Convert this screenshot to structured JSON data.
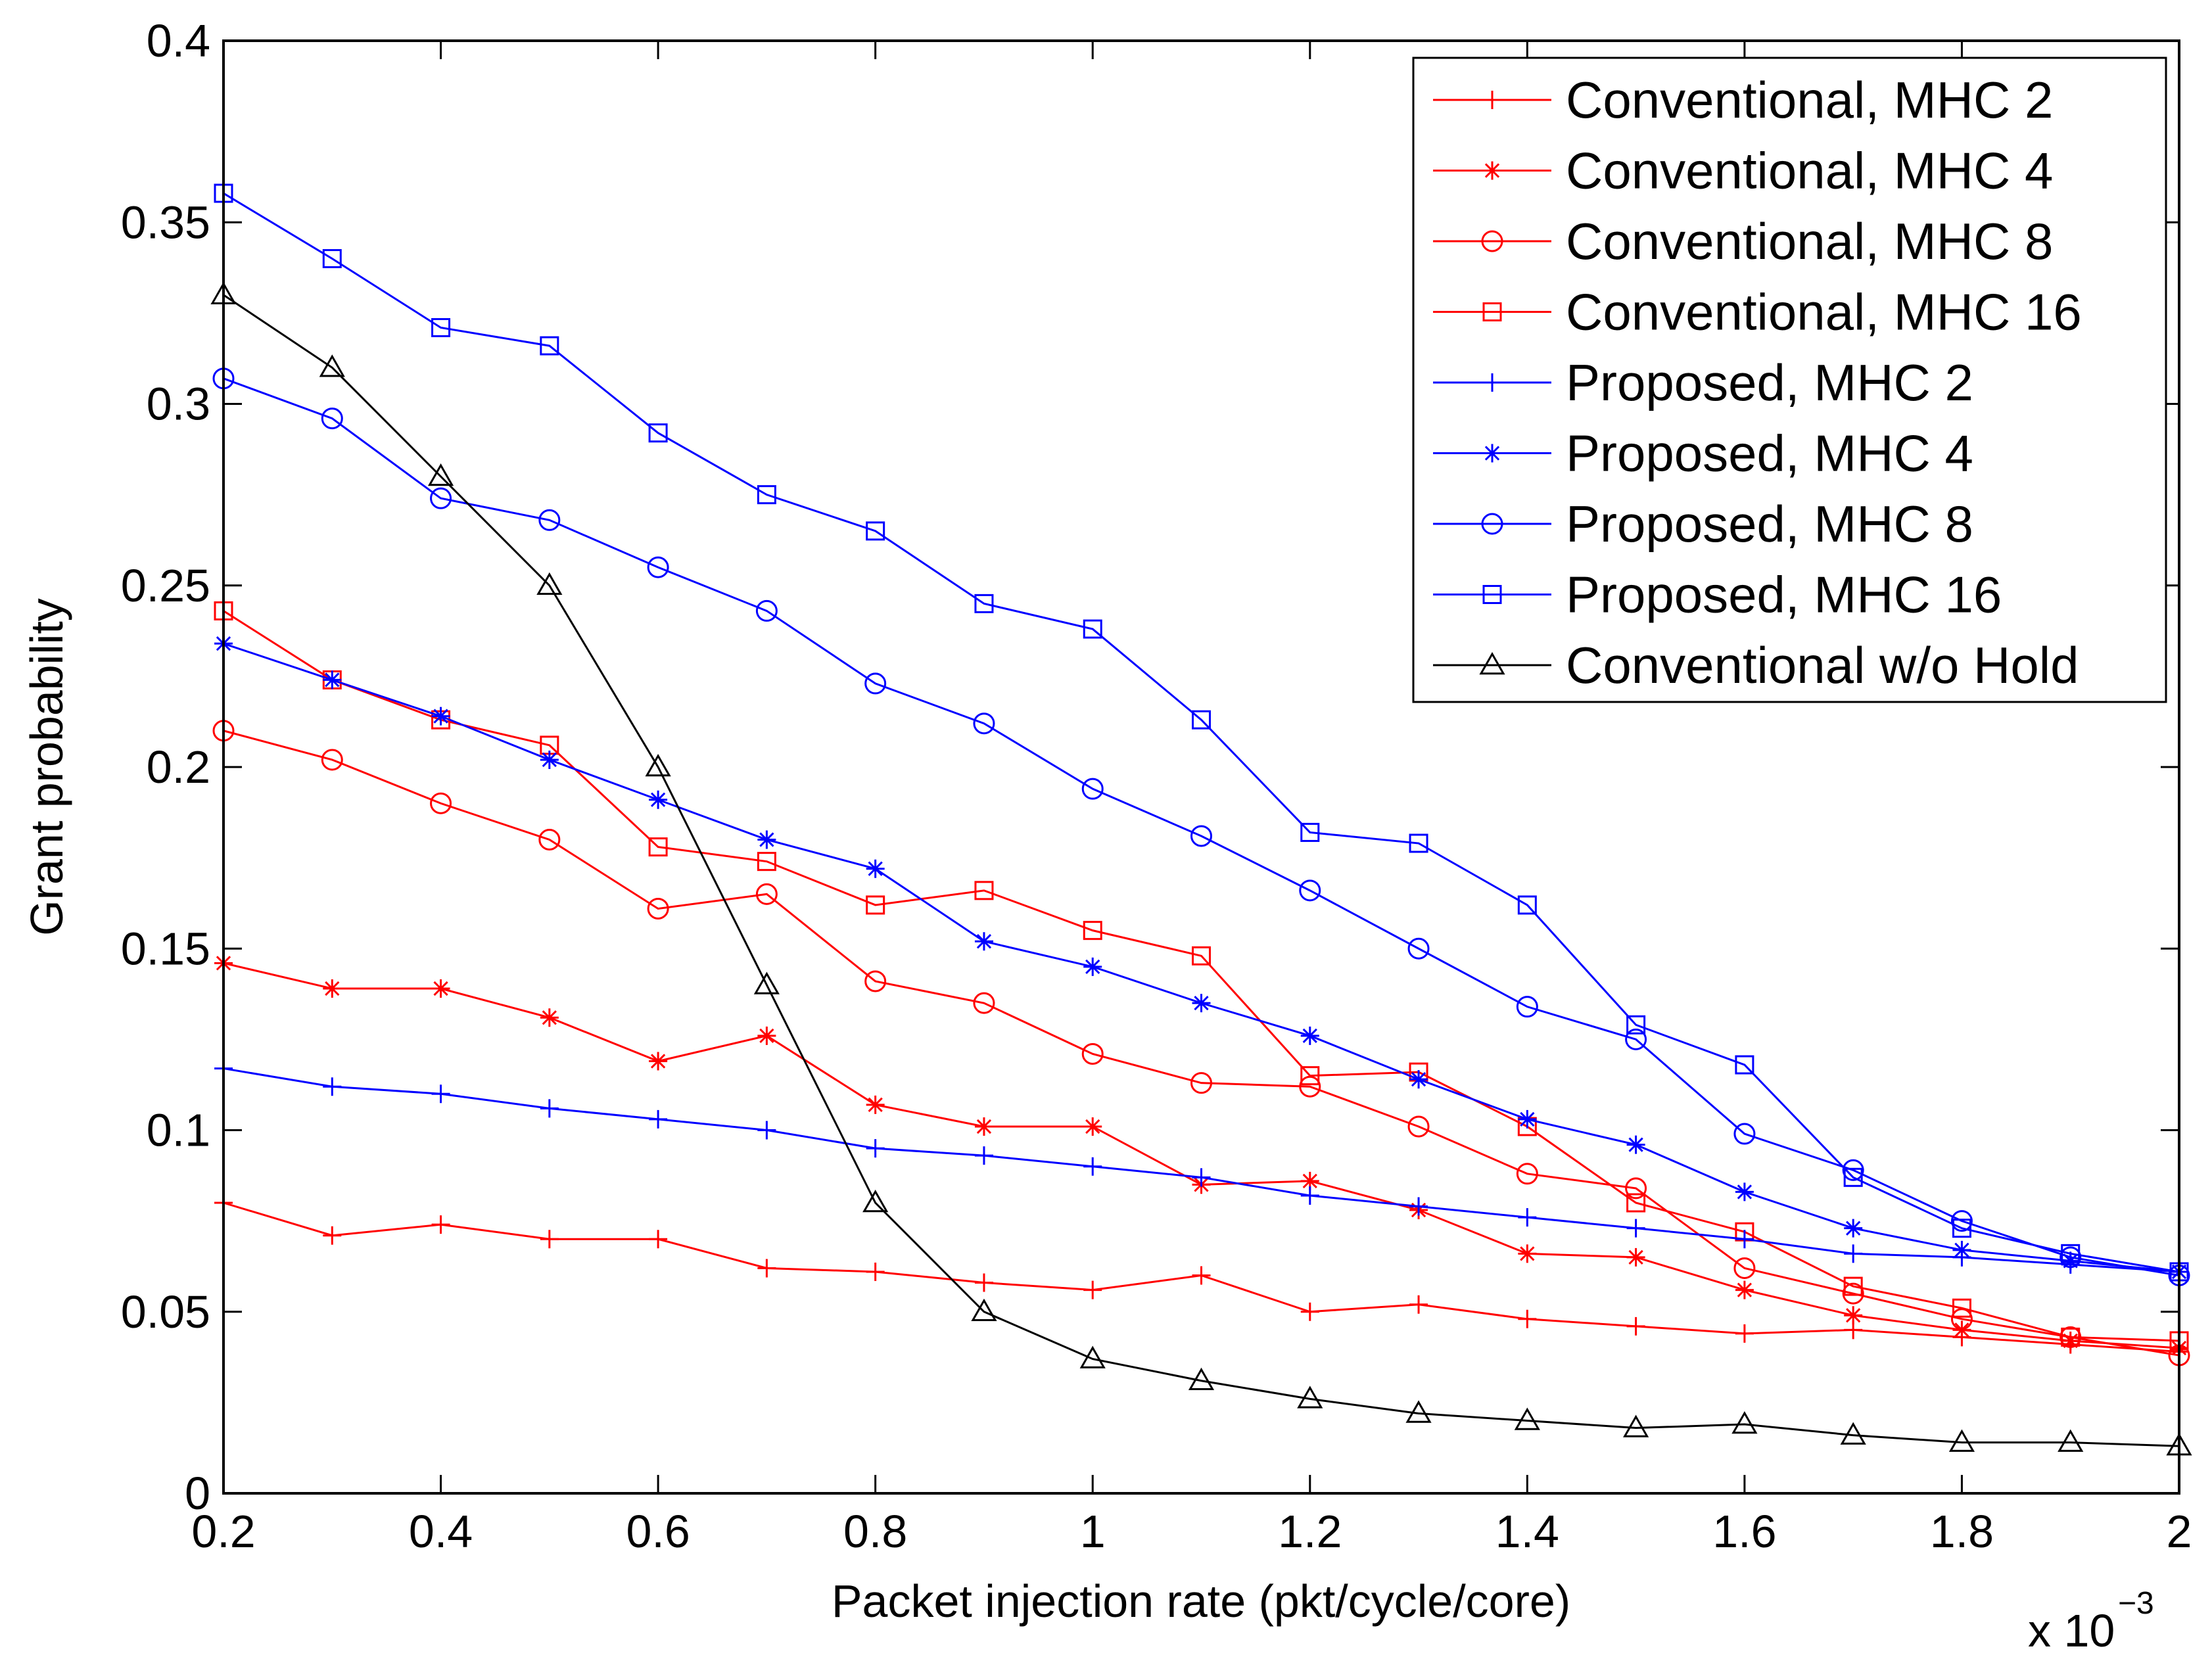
{
  "chart_data": {
    "type": "line",
    "title": "",
    "xlabel": "Packet injection rate (pkt/cycle/core)",
    "ylabel": "Grant probability",
    "x_multiplier_prefix": "x 10",
    "x_multiplier_exponent": "−3",
    "xlim": [
      0.2,
      2
    ],
    "ylim": [
      0,
      0.4
    ],
    "xticks": [
      0.2,
      0.4,
      0.6,
      0.8,
      1,
      1.2,
      1.4,
      1.6,
      1.8,
      2
    ],
    "xtick_labels": [
      "0.2",
      "0.4",
      "0.6",
      "0.8",
      "1",
      "1.2",
      "1.4",
      "1.6",
      "1.8",
      "2"
    ],
    "yticks": [
      0,
      0.05,
      0.1,
      0.15,
      0.2,
      0.25,
      0.3,
      0.35,
      0.4
    ],
    "ytick_labels": [
      "0",
      "0.05",
      "0.1",
      "0.15",
      "0.2",
      "0.25",
      "0.3",
      "0.35",
      "0.4"
    ],
    "grid": false,
    "legend_position": "top-right",
    "x": [
      0.2,
      0.3,
      0.4,
      0.5,
      0.6,
      0.7,
      0.8,
      0.9,
      1.0,
      1.1,
      1.2,
      1.3,
      1.4,
      1.5,
      1.6,
      1.7,
      1.8,
      1.9,
      2.0
    ],
    "series": [
      {
        "name": "Conventional, MHC 2",
        "color": "#ff0000",
        "marker": "plus",
        "values": [
          0.08,
          0.071,
          0.074,
          0.07,
          0.07,
          0.062,
          0.061,
          0.058,
          0.056,
          0.06,
          0.05,
          0.052,
          0.048,
          0.046,
          0.044,
          0.045,
          0.043,
          0.041,
          0.039
        ]
      },
      {
        "name": "Conventional, MHC 4",
        "color": "#ff0000",
        "marker": "star",
        "values": [
          0.146,
          0.139,
          0.139,
          0.131,
          0.119,
          0.126,
          0.107,
          0.101,
          0.101,
          0.085,
          0.086,
          0.078,
          0.066,
          0.065,
          0.056,
          0.049,
          0.045,
          0.042,
          0.04
        ]
      },
      {
        "name": "Conventional, MHC 8",
        "color": "#ff0000",
        "marker": "circle",
        "values": [
          0.21,
          0.202,
          0.19,
          0.18,
          0.161,
          0.165,
          0.141,
          0.135,
          0.121,
          0.113,
          0.112,
          0.101,
          0.088,
          0.084,
          0.062,
          0.055,
          0.048,
          0.043,
          0.038
        ]
      },
      {
        "name": "Conventional, MHC 16",
        "color": "#ff0000",
        "marker": "square",
        "values": [
          0.243,
          0.224,
          0.213,
          0.206,
          0.178,
          0.174,
          0.162,
          0.166,
          0.155,
          0.148,
          0.115,
          0.116,
          0.101,
          0.08,
          0.072,
          0.057,
          0.051,
          0.043,
          0.042
        ]
      },
      {
        "name": "Proposed, MHC 2",
        "color": "#0000ff",
        "marker": "plus",
        "values": [
          0.117,
          0.112,
          0.11,
          0.106,
          0.103,
          0.1,
          0.095,
          0.093,
          0.09,
          0.087,
          0.082,
          0.079,
          0.076,
          0.073,
          0.07,
          0.066,
          0.065,
          0.063,
          0.061
        ]
      },
      {
        "name": "Proposed, MHC 4",
        "color": "#0000ff",
        "marker": "star",
        "values": [
          0.234,
          0.224,
          0.214,
          0.202,
          0.191,
          0.18,
          0.172,
          0.152,
          0.145,
          0.135,
          0.126,
          0.114,
          0.103,
          0.096,
          0.083,
          0.073,
          0.067,
          0.064,
          0.061
        ]
      },
      {
        "name": "Proposed, MHC 8",
        "color": "#0000ff",
        "marker": "circle",
        "values": [
          0.307,
          0.296,
          0.274,
          0.268,
          0.255,
          0.243,
          0.223,
          0.212,
          0.194,
          0.181,
          0.166,
          0.15,
          0.134,
          0.125,
          0.099,
          0.089,
          0.075,
          0.065,
          0.06
        ]
      },
      {
        "name": "Proposed, MHC 16",
        "color": "#0000ff",
        "marker": "square",
        "values": [
          0.358,
          0.34,
          0.321,
          0.316,
          0.292,
          0.275,
          0.265,
          0.245,
          0.238,
          0.213,
          0.182,
          0.179,
          0.162,
          0.129,
          0.118,
          0.087,
          0.073,
          0.066,
          0.061
        ]
      },
      {
        "name": "Conventional w/o Hold",
        "color": "#000000",
        "marker": "triangle",
        "values": [
          0.33,
          0.31,
          0.28,
          0.25,
          0.2,
          0.14,
          0.08,
          0.05,
          0.037,
          0.031,
          0.026,
          0.022,
          0.02,
          0.018,
          0.019,
          0.016,
          0.014,
          0.014,
          0.013
        ]
      }
    ]
  }
}
